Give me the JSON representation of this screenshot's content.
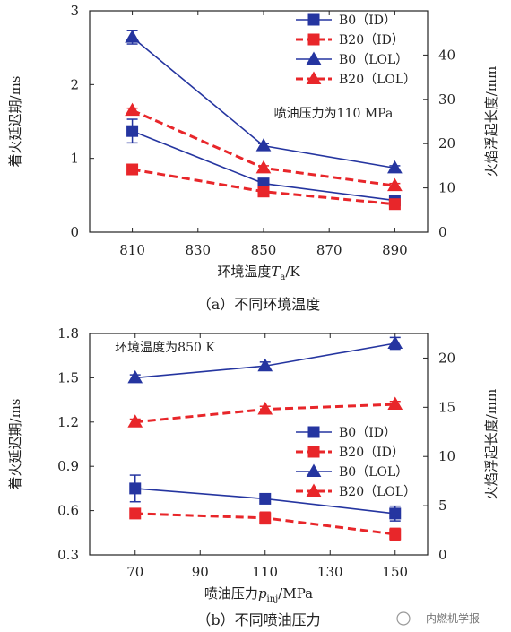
{
  "colors": {
    "blue": "#2535a0",
    "red": "#e8262a",
    "axis": "#222222"
  },
  "chart_data": [
    {
      "id": "a",
      "type": "line",
      "caption": "（a）不同环境温度",
      "xlabel_prefix": "环境温度",
      "xlabel_var": "T",
      "xlabel_sub": "a",
      "xlabel_suffix": "/K",
      "ylabel": "着火延迟期/ms",
      "y2label": "火焰浮起长度/mm",
      "annotation": "喷油压力为110 MPa",
      "x": [
        810,
        850,
        890
      ],
      "xticks": [
        810,
        830,
        850,
        870,
        890
      ],
      "xticklabels": [
        "810",
        "830",
        "850",
        "870",
        "890"
      ],
      "xlim": [
        797,
        900
      ],
      "ylim": [
        0,
        3
      ],
      "yticks": [
        0,
        1,
        2,
        3
      ],
      "yticklabels": [
        "0",
        "1",
        "2",
        "3"
      ],
      "y2lim": [
        0,
        50
      ],
      "y2ticks": [
        0,
        10,
        20,
        30,
        40
      ],
      "y2ticklabels": [
        "0",
        "10",
        "20",
        "30",
        "40"
      ],
      "legend": "top-right",
      "series": [
        {
          "name": "B0（ID）",
          "axis": "left",
          "color": "blue",
          "dash": false,
          "marker": "square",
          "values": [
            1.37,
            0.66,
            0.43
          ],
          "errors": [
            0.16,
            0.05,
            0.04
          ]
        },
        {
          "name": "B20（ID）",
          "axis": "left",
          "color": "red",
          "dash": true,
          "marker": "square",
          "values": [
            0.85,
            0.55,
            0.38
          ],
          "errors": [
            0.04,
            0.04,
            0.03
          ]
        },
        {
          "name": "B0（LOL）",
          "axis": "right",
          "color": "blue",
          "dash": false,
          "marker": "triangle",
          "values": [
            44,
            19.5,
            14.5
          ],
          "errors": [
            1.5,
            0.5,
            0.5
          ]
        },
        {
          "name": "B20（LOL）",
          "axis": "right",
          "color": "red",
          "dash": true,
          "marker": "triangle",
          "values": [
            27.5,
            14.5,
            10.5
          ],
          "errors": [
            0.5,
            0.5,
            0.5
          ]
        }
      ]
    },
    {
      "id": "b",
      "type": "line",
      "caption": "（b）不同喷油压力",
      "xlabel_prefix": "喷油压力",
      "xlabel_var": "p",
      "xlabel_sub": "inj",
      "xlabel_suffix": "/MPa",
      "ylabel": "着火延迟期/ms",
      "y2label": "火焰浮起长度/mm",
      "annotation": "环境温度为850 K",
      "x": [
        70,
        110,
        150
      ],
      "xticks": [
        70,
        90,
        110,
        130,
        150
      ],
      "xticklabels": [
        "70",
        "90",
        "110",
        "130",
        "150"
      ],
      "xlim": [
        56,
        160
      ],
      "ylim": [
        0.3,
        1.8
      ],
      "yticks": [
        0.3,
        0.6,
        0.9,
        1.2,
        1.5,
        1.8
      ],
      "yticklabels": [
        "0.3",
        "0.6",
        "0.9",
        "1.2",
        "1.5",
        "1.8"
      ],
      "y2lim": [
        0,
        22.5
      ],
      "y2ticks": [
        0,
        5,
        10,
        15,
        20
      ],
      "y2ticklabels": [
        "0",
        "5",
        "10",
        "15",
        "20"
      ],
      "legend": "center-right",
      "series": [
        {
          "name": "B0（ID）",
          "axis": "left",
          "color": "blue",
          "dash": false,
          "marker": "square",
          "values": [
            0.75,
            0.68,
            0.58
          ],
          "errors": [
            0.09,
            0.03,
            0.05
          ]
        },
        {
          "name": "B20（ID）",
          "axis": "left",
          "color": "red",
          "dash": true,
          "marker": "square",
          "values": [
            0.58,
            0.55,
            0.44
          ],
          "errors": [
            0.03,
            0.04,
            0.04
          ]
        },
        {
          "name": "B0（LOL）",
          "axis": "right",
          "color": "blue",
          "dash": false,
          "marker": "triangle",
          "values": [
            18.0,
            19.2,
            21.5
          ],
          "errors": [
            0.3,
            0.4,
            0.6
          ]
        },
        {
          "name": "B20（LOL）",
          "axis": "right",
          "color": "red",
          "dash": true,
          "marker": "triangle",
          "values": [
            13.5,
            14.8,
            15.3
          ],
          "errors": [
            0.3,
            0.3,
            0.3
          ]
        }
      ]
    }
  ],
  "watermark": "内燃机学报"
}
